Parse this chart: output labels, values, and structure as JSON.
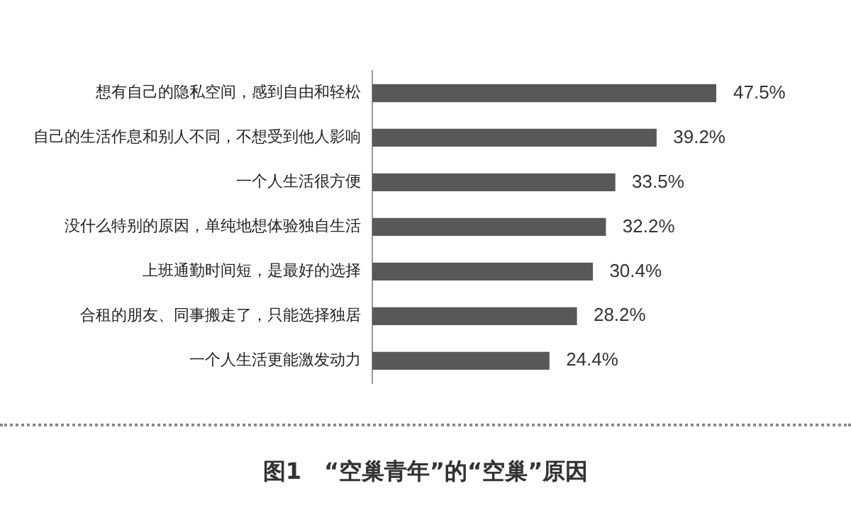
{
  "chart_data": {
    "type": "bar",
    "orientation": "horizontal",
    "tick_labels": "y",
    "title": "图1　“空巢青年”的“空巢”原因",
    "categories": [
      "想有自己的隐私空间，感到自由和轻松",
      "自己的生活作息和别人不同，不想受到他人影响",
      "一个人生活很方便",
      "没什么特别的原因，单纯地想体验独自生活",
      "上班通勤时间短，是最好的选择",
      "合租的朋友、同事搬走了，只能选择独居",
      "一个人生活更能激发动力"
    ],
    "values": [
      47.5,
      39.2,
      33.5,
      32.2,
      30.4,
      28.2,
      24.4
    ],
    "value_labels": [
      "47.5%",
      "39.2%",
      "33.5%",
      "32.2%",
      "30.4%",
      "28.2%",
      "24.4%"
    ],
    "color": "#58585a",
    "legend": false
  }
}
